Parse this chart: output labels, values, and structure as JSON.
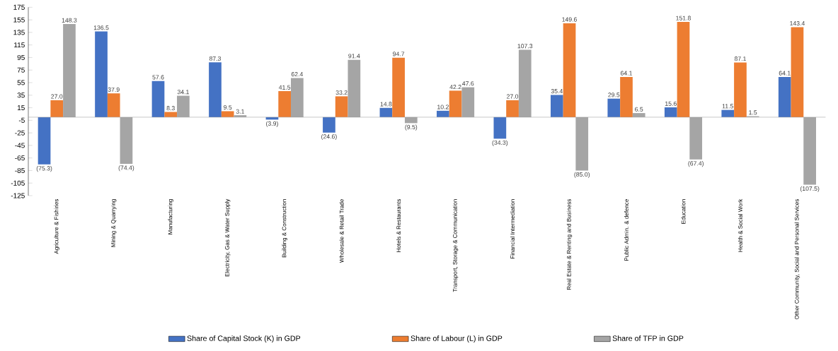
{
  "chart_data": {
    "type": "bar",
    "categories": [
      "Agriculture & Fishiries",
      "Mining & Quarrying",
      "Manufacturing",
      "Electricity, Gas & Water Supply",
      "Building & Construction",
      "Wholesale & Retail Trade",
      "Hotels & Restaurants",
      "Transport, Storage & Communication",
      "Financial Intermediation",
      "Real Estate & Renting and Business",
      "Public Admin. & defence",
      "Education",
      "Health & Social Work",
      "Other Community, Social and Personal Services"
    ],
    "series": [
      {
        "name": "Share of Capital Stock (K) in GDP",
        "color": "#4472c4",
        "values": [
          -75.3,
          136.5,
          57.6,
          87.3,
          -3.9,
          -24.6,
          14.8,
          10.2,
          -34.3,
          35.4,
          29.5,
          15.6,
          11.5,
          64.1
        ],
        "value_labels": [
          "(75.3)",
          "136.5",
          "57.6",
          "87.3",
          "(3.9)",
          "(24.6)",
          "14.8",
          "10.2",
          "(34.3)",
          "35.4",
          "29.5",
          "15.6",
          "11.5",
          "64.1"
        ]
      },
      {
        "name": "Share of  Labour (L) in GDP",
        "color": "#ed7d31",
        "values": [
          27.0,
          37.9,
          8.3,
          9.5,
          41.5,
          33.2,
          94.7,
          42.2,
          27.0,
          149.6,
          64.1,
          151.8,
          87.1,
          143.4
        ],
        "value_labels": [
          "27.0",
          "37.9",
          "8.3",
          "9.5",
          "41.5",
          "33.2",
          "94.7",
          "42.2",
          "27.0",
          "149.6",
          "64.1",
          "151.8",
          "87.1",
          "143.4"
        ]
      },
      {
        "name": "Share of TFP in GDP",
        "color": "#a5a5a5",
        "values": [
          148.3,
          -74.4,
          34.1,
          3.1,
          62.4,
          91.4,
          -9.5,
          47.6,
          107.3,
          -85.0,
          6.5,
          -67.4,
          1.5,
          -107.5
        ],
        "value_labels": [
          "148.3",
          "(74.4)",
          "34.1",
          "3.1",
          "62.4",
          "91.4",
          "(9.5)",
          "47.6",
          "107.3",
          "(85.0)",
          "6.5",
          "(67.4)",
          "1.5",
          "(107.5)"
        ]
      }
    ],
    "ylim": [
      -125,
      175
    ],
    "yticks": [
      -125,
      -105,
      -85,
      -65,
      -45,
      -25,
      -5,
      15,
      35,
      55,
      75,
      95,
      115,
      135,
      155,
      175
    ],
    "grid": false,
    "legend": "bottom"
  }
}
